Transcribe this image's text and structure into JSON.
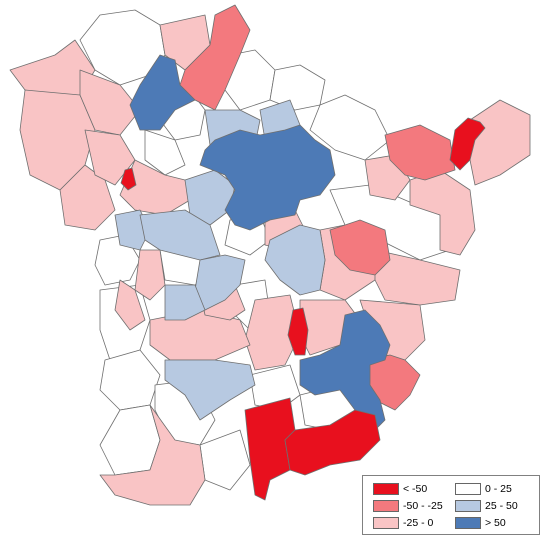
{
  "colors": {
    "lt_neg50": "#e8101e",
    "neg50_neg25": "#f3797e",
    "neg25_0": "#f9c4c5",
    "0_25": "#ffffff",
    "25_50": "#b7c9e1",
    "gt_50": "#4d7ab6"
  },
  "legend": {
    "items": [
      {
        "label": "< -50",
        "color_key": "lt_neg50"
      },
      {
        "label": "0 - 25",
        "color_key": "0_25"
      },
      {
        "label": "-50 - -25",
        "color_key": "neg50_neg25"
      },
      {
        "label": "25 - 50",
        "color_key": "25_50"
      },
      {
        "label": "-25 - 0",
        "color_key": "neg25_0"
      },
      {
        "label": "> 50",
        "color_key": "gt_50"
      }
    ]
  }
}
